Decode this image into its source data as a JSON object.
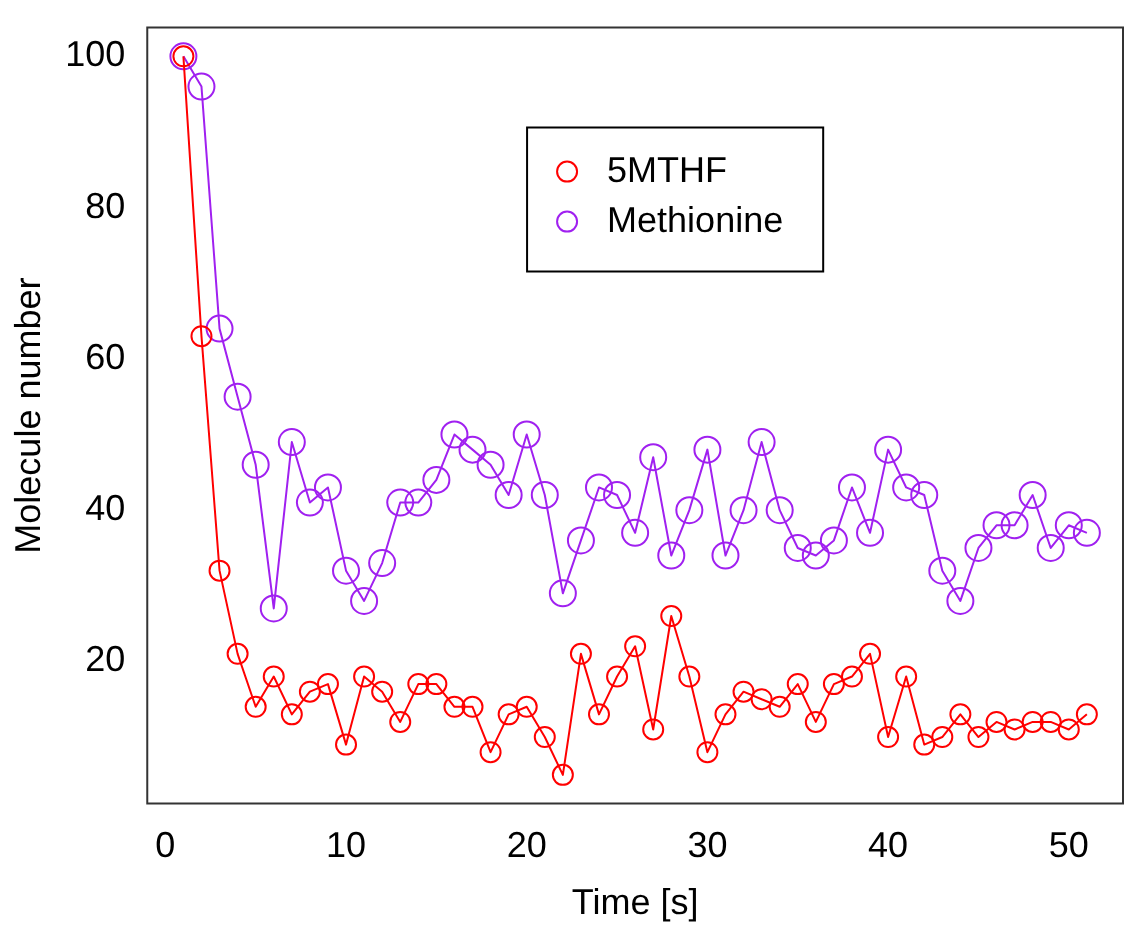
{
  "chart_data": {
    "type": "line",
    "xlabel": "Time [s]",
    "ylabel": "Molecule number",
    "x": [
      1,
      2,
      3,
      4,
      5,
      6,
      7,
      8,
      9,
      10,
      11,
      12,
      13,
      14,
      15,
      16,
      17,
      18,
      19,
      20,
      21,
      22,
      23,
      24,
      25,
      26,
      27,
      28,
      29,
      30,
      31,
      32,
      33,
      34,
      35,
      36,
      37,
      38,
      39,
      40,
      41,
      42,
      43,
      44,
      45,
      46,
      47,
      48,
      49,
      50,
      51
    ],
    "series": [
      {
        "name": "5MTHF",
        "color": "#ff0000",
        "values": [
          100,
          63,
          32,
          21,
          14,
          18,
          13,
          16,
          17,
          9,
          18,
          16,
          12,
          17,
          17,
          14,
          14,
          8,
          13,
          14,
          10,
          5,
          21,
          13,
          18,
          22,
          11,
          26,
          18,
          8,
          13,
          16,
          15,
          14,
          17,
          12,
          17,
          18,
          21,
          10,
          18,
          9,
          10,
          13,
          10,
          12,
          11,
          12,
          12,
          11,
          13
        ]
      },
      {
        "name": "Methionine",
        "color": "#a020f0",
        "values": [
          100,
          96,
          64,
          55,
          46,
          27,
          49,
          41,
          43,
          32,
          28,
          33,
          41,
          41,
          44,
          50,
          48,
          46,
          42,
          50,
          42,
          29,
          36,
          43,
          42,
          37,
          47,
          34,
          40,
          48,
          34,
          40,
          49,
          40,
          35,
          34,
          36,
          43,
          37,
          48,
          43,
          42,
          32,
          28,
          35,
          38,
          38,
          42,
          35,
          38,
          37
        ]
      }
    ],
    "xlim": [
      -1,
      53
    ],
    "xticks": [
      0,
      10,
      20,
      30,
      40,
      50
    ],
    "ylim": [
      1.2,
      103.8
    ],
    "yticks": [
      20,
      40,
      60,
      80,
      100
    ],
    "grid": false,
    "legend": "top",
    "marker": "circle",
    "line_style": "solid"
  }
}
